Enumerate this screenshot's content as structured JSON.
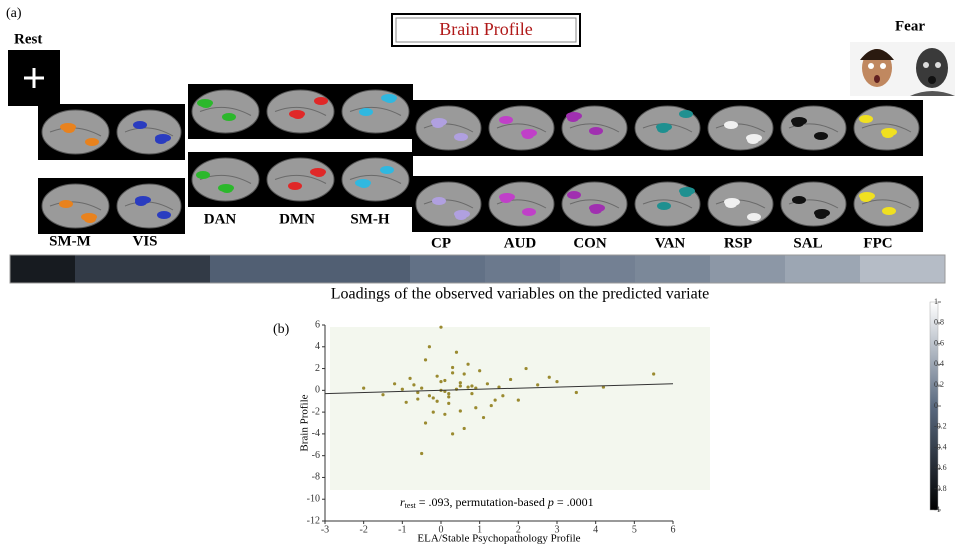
{
  "panel_a_label": "(a)",
  "panel_b_label": "(b)",
  "brain_profile_title": "Brain Profile",
  "rest_label": "Rest",
  "fear_label": "Fear",
  "loadings_caption": "Loadings of the observed variables on the predicted variate",
  "networks": [
    {
      "label": "SM-M",
      "color": "#e8821e",
      "loading": -0.75
    },
    {
      "label": "VIS",
      "color": "#2a3cc0",
      "loading": -0.45
    },
    {
      "label": "DAN",
      "color": "#2cb82c",
      "loading": -0.1
    },
    {
      "label": "DMN",
      "color": "#e02828",
      "loading": -0.1
    },
    {
      "label": "SM-H",
      "color": "#30b8e0",
      "loading": -0.1
    },
    {
      "label": "CP",
      "color": "#b0a0e0",
      "loading": 0.05
    },
    {
      "label": "AUD",
      "color": "#c040c8",
      "loading": 0.1
    },
    {
      "label": "CON",
      "color": "#a030b0",
      "loading": 0.15
    },
    {
      "label": "VAN",
      "color": "#1f9090",
      "loading": 0.2
    },
    {
      "label": "RSP",
      "color": "#f0f0f0",
      "loading": 0.3
    },
    {
      "label": "SAL",
      "color": "#111111",
      "loading": 0.4
    },
    {
      "label": "FPC",
      "color": "#f0e020",
      "loading": 0.55
    }
  ],
  "colorbar": {
    "lim": [
      -1,
      1
    ],
    "ticks": [
      1,
      0.8,
      0.6,
      0.4,
      0.2,
      0,
      -0.2,
      -0.4,
      -0.6,
      -0.8,
      -1
    ]
  },
  "chart_data": {
    "type": "scatter",
    "xlabel": "ELA/Stable Psychopathology Profile",
    "ylabel": "Brain Profile",
    "annotation": {
      "r": "r",
      "sub": "test",
      "mid": " = .093, permutation-based ",
      "p": "p",
      "tail": " = .0001"
    },
    "xlim": [
      -3,
      6
    ],
    "ylim": [
      -12,
      6
    ],
    "xticks": [
      -3,
      -2,
      -1,
      0,
      1,
      2,
      3,
      4,
      5,
      6
    ],
    "yticks": [
      6,
      4,
      2,
      0,
      -2,
      -4,
      -6,
      -8,
      -10,
      -12
    ],
    "color": "#9a8a30",
    "fit_line": {
      "x": [
        -3,
        6
      ],
      "y": [
        -0.3,
        0.6
      ]
    },
    "x": [
      -0.5,
      -0.3,
      0,
      0.2,
      0.5,
      -0.8,
      0.8,
      1.2,
      -0.2,
      0.3,
      0.1,
      -0.6,
      0.6,
      1.5,
      2,
      2.5,
      -1,
      -1.5,
      0.9,
      0.4,
      -0.4,
      0.0,
      0.7,
      1.1,
      -0.7,
      0.2,
      -0.1,
      0.5,
      1.8,
      3,
      3.5,
      4.2,
      -2,
      0.3,
      -0.3,
      0.6,
      1.0,
      -0.9,
      0.1,
      0.4,
      2.2,
      1.3,
      -0.5,
      0.8,
      0,
      -1.2,
      0.2,
      0.5,
      -0.2,
      1.6,
      2.8,
      5.5,
      -0.4,
      0.1,
      0.9,
      -0.6,
      0.3,
      1.4,
      -0.1,
      0.7
    ],
    "y": [
      0.2,
      -0.5,
      0.8,
      -1.2,
      0.4,
      1.1,
      -0.3,
      0.6,
      -2,
      2.1,
      -0.1,
      -0.8,
      1.5,
      0.3,
      -0.9,
      0.5,
      0.1,
      -0.4,
      -1.6,
      3.5,
      -3,
      0.0,
      2.4,
      -2.5,
      0.5,
      -0.6,
      1.3,
      -1.9,
      1.0,
      0.8,
      -0.2,
      0.3,
      0.2,
      -4,
      4,
      -3.5,
      1.8,
      -1.1,
      0.9,
      0.1,
      2.0,
      -1.4,
      -5.8,
      0.4,
      5.8,
      0.6,
      -0.3,
      0.7,
      -0.7,
      -0.5,
      1.2,
      1.5,
      2.8,
      -2.2,
      0.2,
      -0.2,
      1.6,
      -0.9,
      -1.0,
      0.3
    ]
  }
}
